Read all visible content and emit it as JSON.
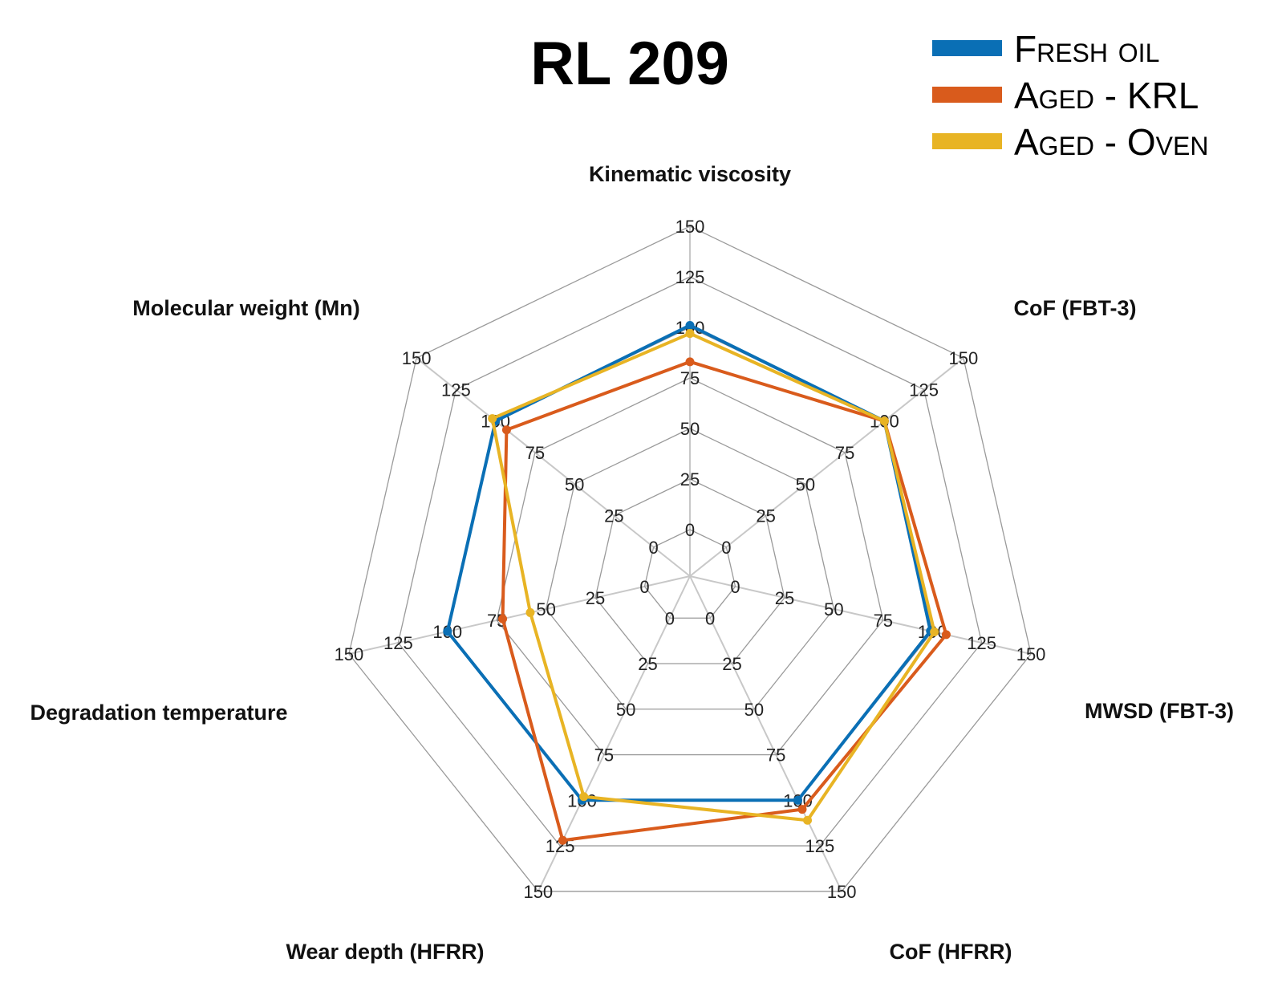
{
  "chart_data": {
    "type": "radar",
    "title": "RL 209",
    "axes": [
      "Kinematic viscosity",
      "CoF (FBT-3)",
      "MWSD (FBT-3)",
      "CoF (HFRR)",
      "Wear depth (HFRR)",
      "Degradation temperature",
      "Molecular weight (Mn)"
    ],
    "ticks": [
      0,
      25,
      50,
      75,
      100,
      125,
      150
    ],
    "range": [
      0,
      150
    ],
    "grid": true,
    "legend_position": "top-right",
    "series": [
      {
        "name": "Fresh oil",
        "color": "#0a6fb5",
        "values": [
          101,
          100,
          99,
          100,
          100,
          100,
          100
        ]
      },
      {
        "name": "Aged - KRL",
        "color": "#d95b1c",
        "values": [
          83,
          100,
          107,
          105,
          122,
          72,
          93
        ]
      },
      {
        "name": "Aged - Oven",
        "color": "#e8b424",
        "values": [
          97,
          100,
          101,
          111,
          98,
          58,
          102
        ]
      }
    ]
  }
}
